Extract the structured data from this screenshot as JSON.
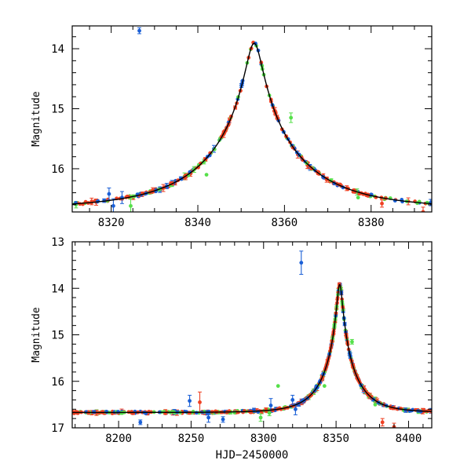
{
  "colors": {
    "series_blue": "#1a5fd6",
    "series_red": "#ef4123",
    "series_green": "#56e04a",
    "model_line": "#000000"
  },
  "chart_data": [
    {
      "type": "scatter",
      "panel": "top",
      "title": "",
      "xlabel": "",
      "ylabel": "Magnitude",
      "xlim": [
        8311,
        8394
      ],
      "ylim": [
        16.72,
        13.62
      ],
      "y_inverted": true,
      "xticks": [
        8320,
        8340,
        8360,
        8380
      ],
      "yticks": [
        14,
        15,
        16
      ],
      "grid": false,
      "model": {
        "t0": 8353,
        "peak_mag": 13.88,
        "base_mag": 16.66,
        "tE": 22,
        "u0": 0.0795
      },
      "outliers": [
        {
          "series": "blue",
          "x": 8326.5,
          "y": 13.7,
          "err": 0.05
        },
        {
          "series": "blue",
          "x": 8319.5,
          "y": 16.42,
          "err": 0.1
        },
        {
          "series": "blue",
          "x": 8320.5,
          "y": 16.62,
          "err": 0.12
        },
        {
          "series": "blue",
          "x": 8322.5,
          "y": 16.48,
          "err": 0.1
        },
        {
          "series": "green",
          "x": 8324.5,
          "y": 16.62,
          "err": 0.12
        },
        {
          "series": "green",
          "x": 8342.0,
          "y": 16.1,
          "err": 0.0
        },
        {
          "series": "green",
          "x": 8361.5,
          "y": 15.15,
          "err": 0.08
        },
        {
          "series": "green",
          "x": 8377.0,
          "y": 16.48,
          "err": 0.0
        },
        {
          "series": "red",
          "x": 8382.5,
          "y": 16.58,
          "err": 0.06
        },
        {
          "series": "red",
          "x": 8392.0,
          "y": 16.72,
          "err": 0.08
        }
      ]
    },
    {
      "type": "scatter",
      "panel": "bottom",
      "title": "",
      "xlabel": "HJD−2450000",
      "ylabel": "Magnitude",
      "xlim": [
        8168,
        8416
      ],
      "ylim": [
        17.0,
        13.0
      ],
      "y_inverted": true,
      "xticks": [
        8200,
        8250,
        8300,
        8350,
        8400
      ],
      "yticks": [
        13,
        14,
        15,
        16,
        17
      ],
      "grid": false,
      "model": {
        "t0": 8352.5,
        "peak_mag": 13.88,
        "base_mag": 16.67,
        "tE": 22,
        "u0": 0.0795
      },
      "outliers": [
        {
          "series": "blue",
          "x": 8326.0,
          "y": 13.45,
          "err": 0.25
        },
        {
          "series": "blue",
          "x": 8215.0,
          "y": 16.88,
          "err": 0.05
        },
        {
          "series": "blue",
          "x": 8249.0,
          "y": 16.42,
          "err": 0.12
        },
        {
          "series": "blue",
          "x": 8262.0,
          "y": 16.78,
          "err": 0.1
        },
        {
          "series": "blue",
          "x": 8272.0,
          "y": 16.82,
          "err": 0.06
        },
        {
          "series": "blue",
          "x": 8305.0,
          "y": 16.52,
          "err": 0.15
        },
        {
          "series": "blue",
          "x": 8320.0,
          "y": 16.4,
          "err": 0.1
        },
        {
          "series": "blue",
          "x": 8322.0,
          "y": 16.6,
          "err": 0.12
        },
        {
          "series": "red",
          "x": 8256.0,
          "y": 16.45,
          "err": 0.22
        },
        {
          "series": "red",
          "x": 8382.0,
          "y": 16.88,
          "err": 0.08
        },
        {
          "series": "red",
          "x": 8390.0,
          "y": 16.98,
          "err": 0.08
        },
        {
          "series": "green",
          "x": 8310.0,
          "y": 16.1,
          "err": 0.0
        },
        {
          "series": "green",
          "x": 8298.0,
          "y": 16.78,
          "err": 0.08
        },
        {
          "series": "green",
          "x": 8304.0,
          "y": 16.68,
          "err": 0.06
        },
        {
          "series": "green",
          "x": 8342.0,
          "y": 16.1,
          "err": 0.0
        },
        {
          "series": "green",
          "x": 8361.0,
          "y": 15.15,
          "err": 0.05
        },
        {
          "series": "green",
          "x": 8377.0,
          "y": 16.5,
          "err": 0.0
        }
      ]
    }
  ]
}
